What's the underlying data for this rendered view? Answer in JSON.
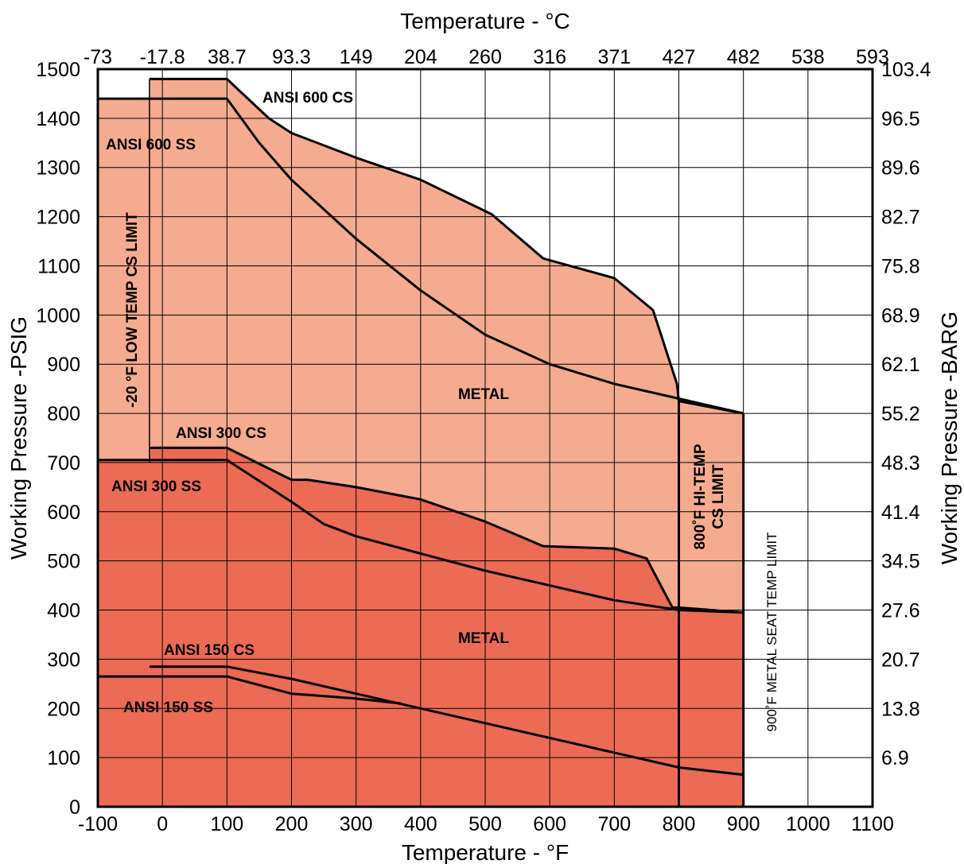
{
  "chart_data": {
    "type": "area",
    "title": "",
    "xlabel": "Temperature - °F",
    "x2label": "Temperature - °C",
    "ylabel": "Working Pressure -PSIG",
    "y2label": "Working Pressure -BARG",
    "xlim": [
      -100,
      1100
    ],
    "ylim": [
      0,
      1500
    ],
    "x_ticks": [
      -100,
      0,
      100,
      200,
      300,
      400,
      500,
      600,
      700,
      800,
      900,
      1000,
      1100
    ],
    "x_tick_labels": [
      "-100",
      "0",
      "100",
      "200",
      "300",
      "400",
      "500",
      "600",
      "700",
      "800",
      "900",
      "1000",
      "1100"
    ],
    "x2_tick_labels": [
      "-73",
      "-17.8",
      "38.7",
      "93.3",
      "149",
      "204",
      "260",
      "316",
      "371",
      "427",
      "482",
      "538",
      "593"
    ],
    "y_ticks": [
      0,
      100,
      200,
      300,
      400,
      500,
      600,
      700,
      800,
      900,
      1000,
      1100,
      1200,
      1300,
      1400,
      1500
    ],
    "y_tick_labels": [
      "0",
      "100",
      "200",
      "300",
      "400",
      "500",
      "600",
      "700",
      "800",
      "900",
      "1000",
      "1100",
      "1200",
      "1300",
      "1400",
      "1500"
    ],
    "y2_ticks": [
      100,
      200,
      300,
      400,
      500,
      600,
      700,
      800,
      900,
      1000,
      1100,
      1200,
      1300,
      1400,
      1500
    ],
    "y2_tick_labels": [
      "6.9",
      "13.8",
      "20.7",
      "27.6",
      "34.5",
      "41.4",
      "48.3",
      "55.2",
      "62.1",
      "68.9",
      "75.8",
      "82.7",
      "89.6",
      "96.5",
      "103.4"
    ],
    "grid": true,
    "colors": {
      "class600_fill": "#f4ab8f",
      "class300_fill": "#eb6b55",
      "line": "#000000",
      "grid": "#000000"
    },
    "series": [
      {
        "name": "ANSI 600 CS",
        "x": [
          -20,
          100,
          165,
          200,
          300,
          400,
          510,
          590,
          700,
          760,
          797,
          800,
          900
        ],
        "y": [
          1480,
          1480,
          1400,
          1370,
          1320,
          1275,
          1205,
          1115,
          1075,
          1010,
          860,
          825,
          800
        ]
      },
      {
        "name": "ANSI 600 SS",
        "x": [
          -100,
          100,
          150,
          200,
          300,
          400,
          500,
          600,
          700,
          800,
          900
        ],
        "y": [
          1440,
          1440,
          1350,
          1275,
          1155,
          1050,
          960,
          900,
          860,
          830,
          800
        ]
      },
      {
        "name": "ANSI 300 CS",
        "x": [
          -20,
          100,
          200,
          225,
          300,
          400,
          500,
          590,
          700,
          750,
          790,
          800,
          900
        ],
        "y": [
          730,
          730,
          665,
          665,
          650,
          625,
          580,
          530,
          525,
          505,
          405,
          405,
          395
        ]
      },
      {
        "name": "ANSI 300 SS",
        "x": [
          -100,
          100,
          200,
          250,
          300,
          400,
          500,
          600,
          700,
          800,
          900
        ],
        "y": [
          705,
          705,
          620,
          575,
          550,
          515,
          480,
          450,
          420,
          400,
          395
        ]
      },
      {
        "name": "ANSI 150 CS",
        "x": [
          -20,
          100,
          200,
          300,
          400,
          500,
          600,
          700,
          800,
          900
        ],
        "y": [
          285,
          285,
          260,
          230,
          200,
          170,
          140,
          110,
          80,
          65
        ]
      },
      {
        "name": "ANSI 150 SS",
        "x": [
          -100,
          100,
          200,
          300,
          370
        ],
        "y": [
          265,
          265,
          230,
          220,
          210
        ]
      }
    ],
    "regions": [
      {
        "label": "METAL",
        "x": 500,
        "y": 820
      },
      {
        "label": "METAL",
        "x": 500,
        "y": 340
      }
    ],
    "annotations": [
      {
        "text": "-20 °F  LOW TEMP CS LIMIT",
        "x": -20,
        "line_from": 700,
        "line_to": 1480
      },
      {
        "text": "800˚F HI-TEMP",
        "x": 800
      },
      {
        "text": "CS LIMIT",
        "x": 800
      },
      {
        "text": "900˚F METAL SEAT TEMP LIMIT",
        "x": 900
      }
    ]
  }
}
